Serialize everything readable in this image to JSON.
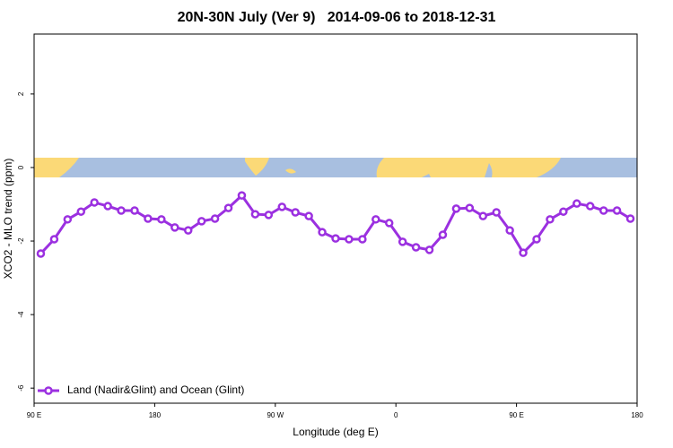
{
  "chart_data": {
    "type": "line",
    "title": "20N-30N July (Ver 9)   2014-09-06 to 2018-12-31",
    "x_label": "Longitude (deg E)",
    "y_label": "XCO2 - MLO trend (ppm)",
    "x": [
      95,
      105,
      115,
      125,
      135,
      145,
      155,
      165,
      175,
      185,
      195,
      205,
      215,
      225,
      235,
      245,
      255,
      265,
      275,
      285,
      295,
      305,
      315,
      325,
      335,
      345,
      355,
      365,
      375,
      385,
      395,
      405,
      415,
      425,
      435,
      445,
      455,
      465,
      475,
      485,
      495,
      505,
      515,
      525,
      535
    ],
    "series": [
      {
        "name": "Land (Nadir&Glint) and Ocean (Glint)",
        "color": "#9b30e0",
        "values": [
          -2.34,
          -1.95,
          -1.41,
          -1.2,
          -0.95,
          -1.05,
          -1.17,
          -1.17,
          -1.39,
          -1.41,
          -1.63,
          -1.71,
          -1.46,
          -1.39,
          -1.1,
          -0.76,
          -1.27,
          -1.29,
          -1.07,
          -1.22,
          -1.32,
          -1.76,
          -1.93,
          -1.95,
          -1.95,
          -1.41,
          -1.51,
          -2.02,
          -2.17,
          -2.24,
          -1.83,
          -1.12,
          -1.1,
          -1.32,
          -1.22,
          -1.71,
          -2.32,
          -1.95,
          -1.41,
          -1.2,
          -0.98,
          -1.05,
          -1.17,
          -1.17,
          -1.39
        ]
      }
    ],
    "xlim": [
      90,
      540
    ],
    "xticks": [
      {
        "value": 90,
        "label": "90 E"
      },
      180,
      {
        "value": 270,
        "label": "90 W"
      },
      {
        "value": 360,
        "label": "0"
      },
      {
        "value": 450,
        "label": "90 E"
      },
      {
        "value": 540,
        "label": "180"
      }
    ],
    "ylim": [
      -6.41,
      3.63
    ],
    "yticks": [
      -6,
      -4,
      -2,
      0,
      2
    ],
    "legend": "bottom-left"
  }
}
